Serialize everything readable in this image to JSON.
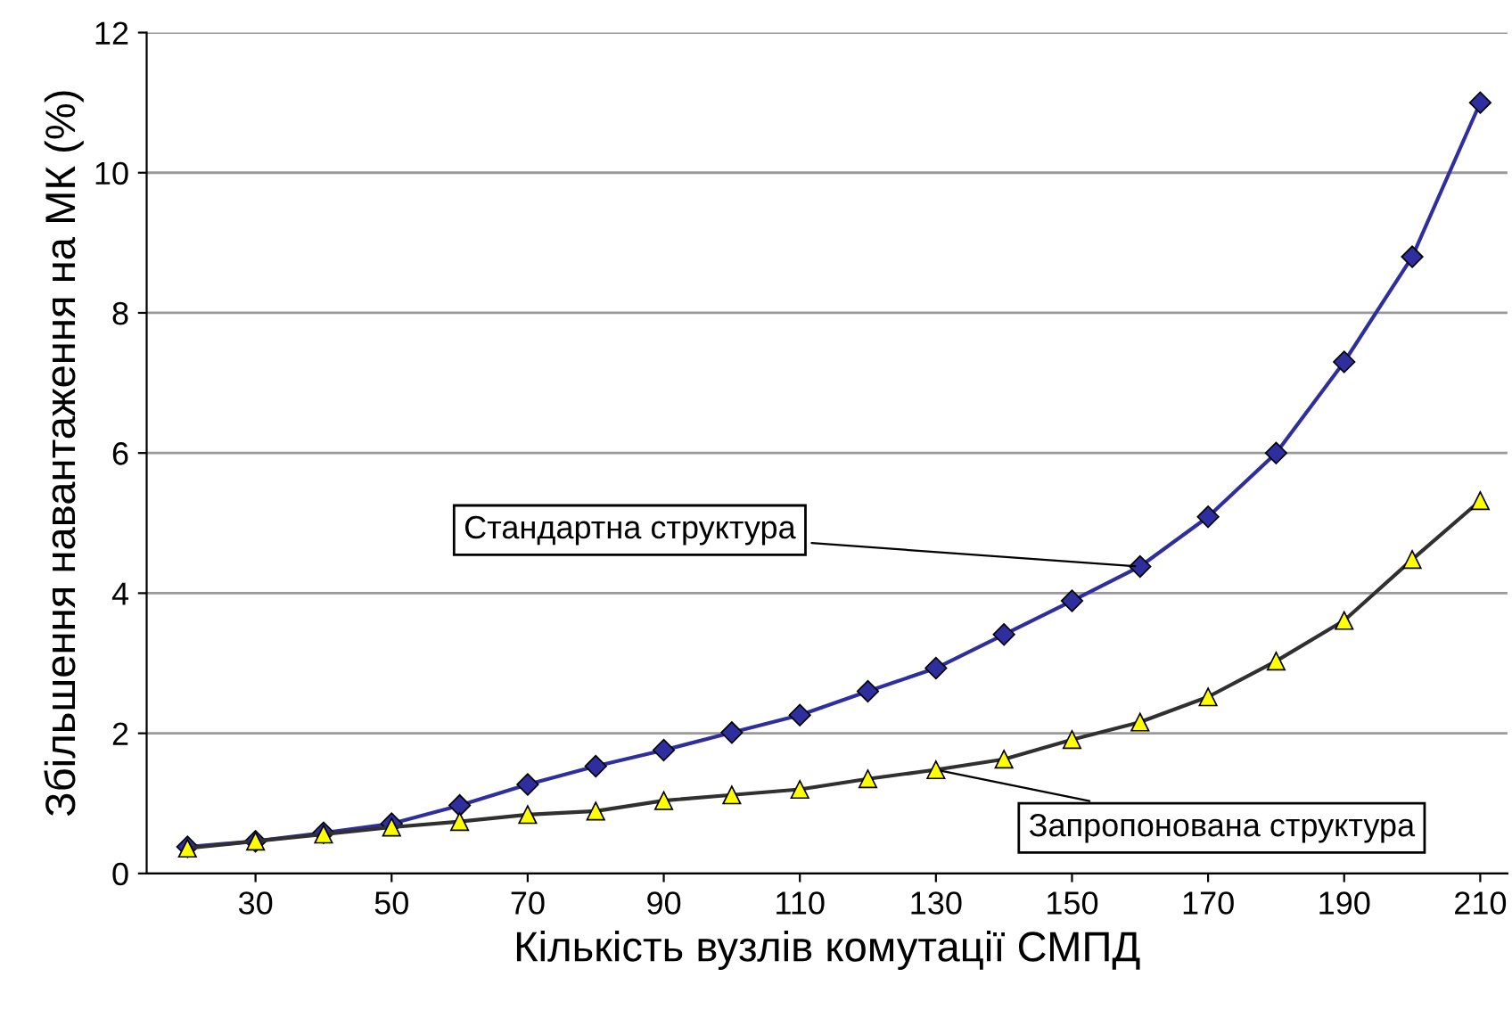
{
  "chart_data": {
    "type": "line",
    "xlabel": "Кількість вузлів комутації СМПД",
    "ylabel": "Збільшення навантаження на МК (%)",
    "x": [
      20,
      30,
      40,
      50,
      60,
      70,
      80,
      90,
      100,
      110,
      120,
      130,
      140,
      150,
      160,
      170,
      180,
      190,
      200,
      210
    ],
    "series": [
      {
        "color": "#2e2e9e",
        "marker": "diamond",
        "values": [
          0.38,
          0.46,
          0.58,
          0.71,
          0.97,
          1.27,
          1.53,
          1.76,
          2.01,
          2.26,
          2.6,
          2.93,
          3.41,
          3.89,
          4.38,
          5.09,
          6.0,
          7.3,
          8.8,
          11.0
        ]
      },
      {
        "color": "#ffff00",
        "marker": "triangle",
        "values": [
          0.36,
          0.46,
          0.56,
          0.66,
          0.74,
          0.84,
          0.89,
          1.04,
          1.12,
          1.2,
          1.35,
          1.48,
          1.63,
          1.91,
          2.16,
          2.52,
          3.03,
          3.61,
          4.48,
          5.32
        ]
      }
    ],
    "xlim": [
      14,
      214
    ],
    "xticks": [
      30,
      50,
      70,
      90,
      110,
      130,
      150,
      170,
      190,
      210
    ],
    "ylim": [
      0,
      12
    ],
    "yticks": [
      0,
      2,
      4,
      6,
      8,
      10,
      12
    ],
    "grid": "y",
    "annotations": [
      {
        "text": "Стандартна структура",
        "x": 160,
        "y": 4.38
      },
      {
        "text": "Запропонована структура",
        "x": 130,
        "y": 1.48
      }
    ]
  }
}
